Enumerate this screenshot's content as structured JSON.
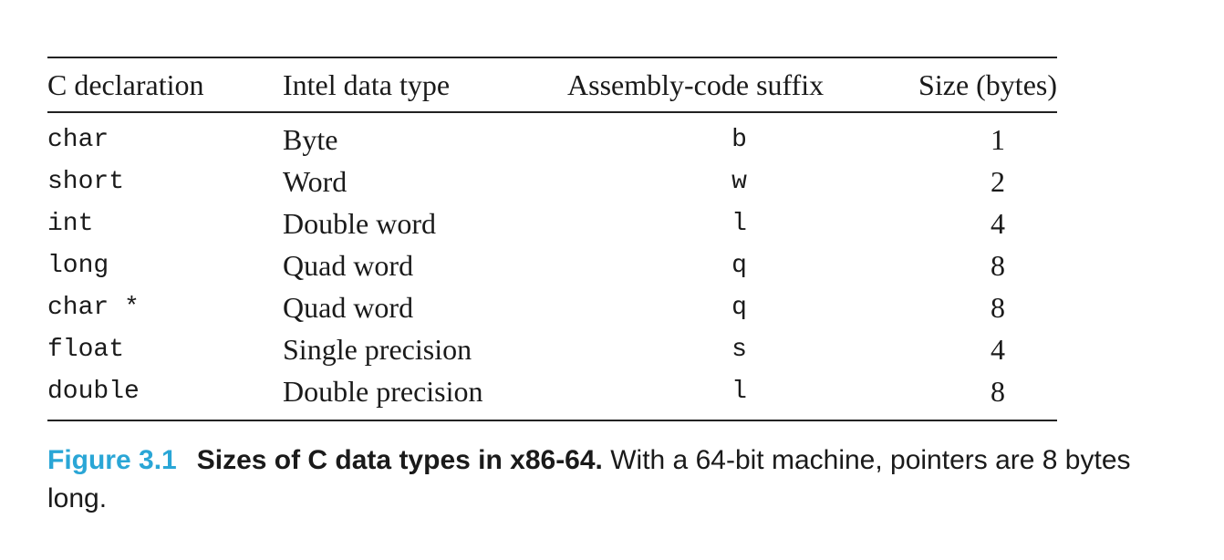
{
  "table": {
    "headers": [
      "C declaration",
      "Intel data type",
      "Assembly-code suffix",
      "Size (bytes)"
    ],
    "rows": [
      [
        "char",
        "Byte",
        "b",
        "1"
      ],
      [
        "short",
        "Word",
        "w",
        "2"
      ],
      [
        "int",
        "Double word",
        "l",
        "4"
      ],
      [
        "long",
        "Quad word",
        "q",
        "8"
      ],
      [
        "char *",
        "Quad word",
        "q",
        "8"
      ],
      [
        "float",
        "Single precision",
        "s",
        "4"
      ],
      [
        "double",
        "Double precision",
        "l",
        "8"
      ]
    ]
  },
  "caption": {
    "figure_number": "Figure 3.1",
    "title": "Sizes of C data types in x86-64.",
    "text": " With a 64-bit machine, pointers are 8 bytes long."
  }
}
